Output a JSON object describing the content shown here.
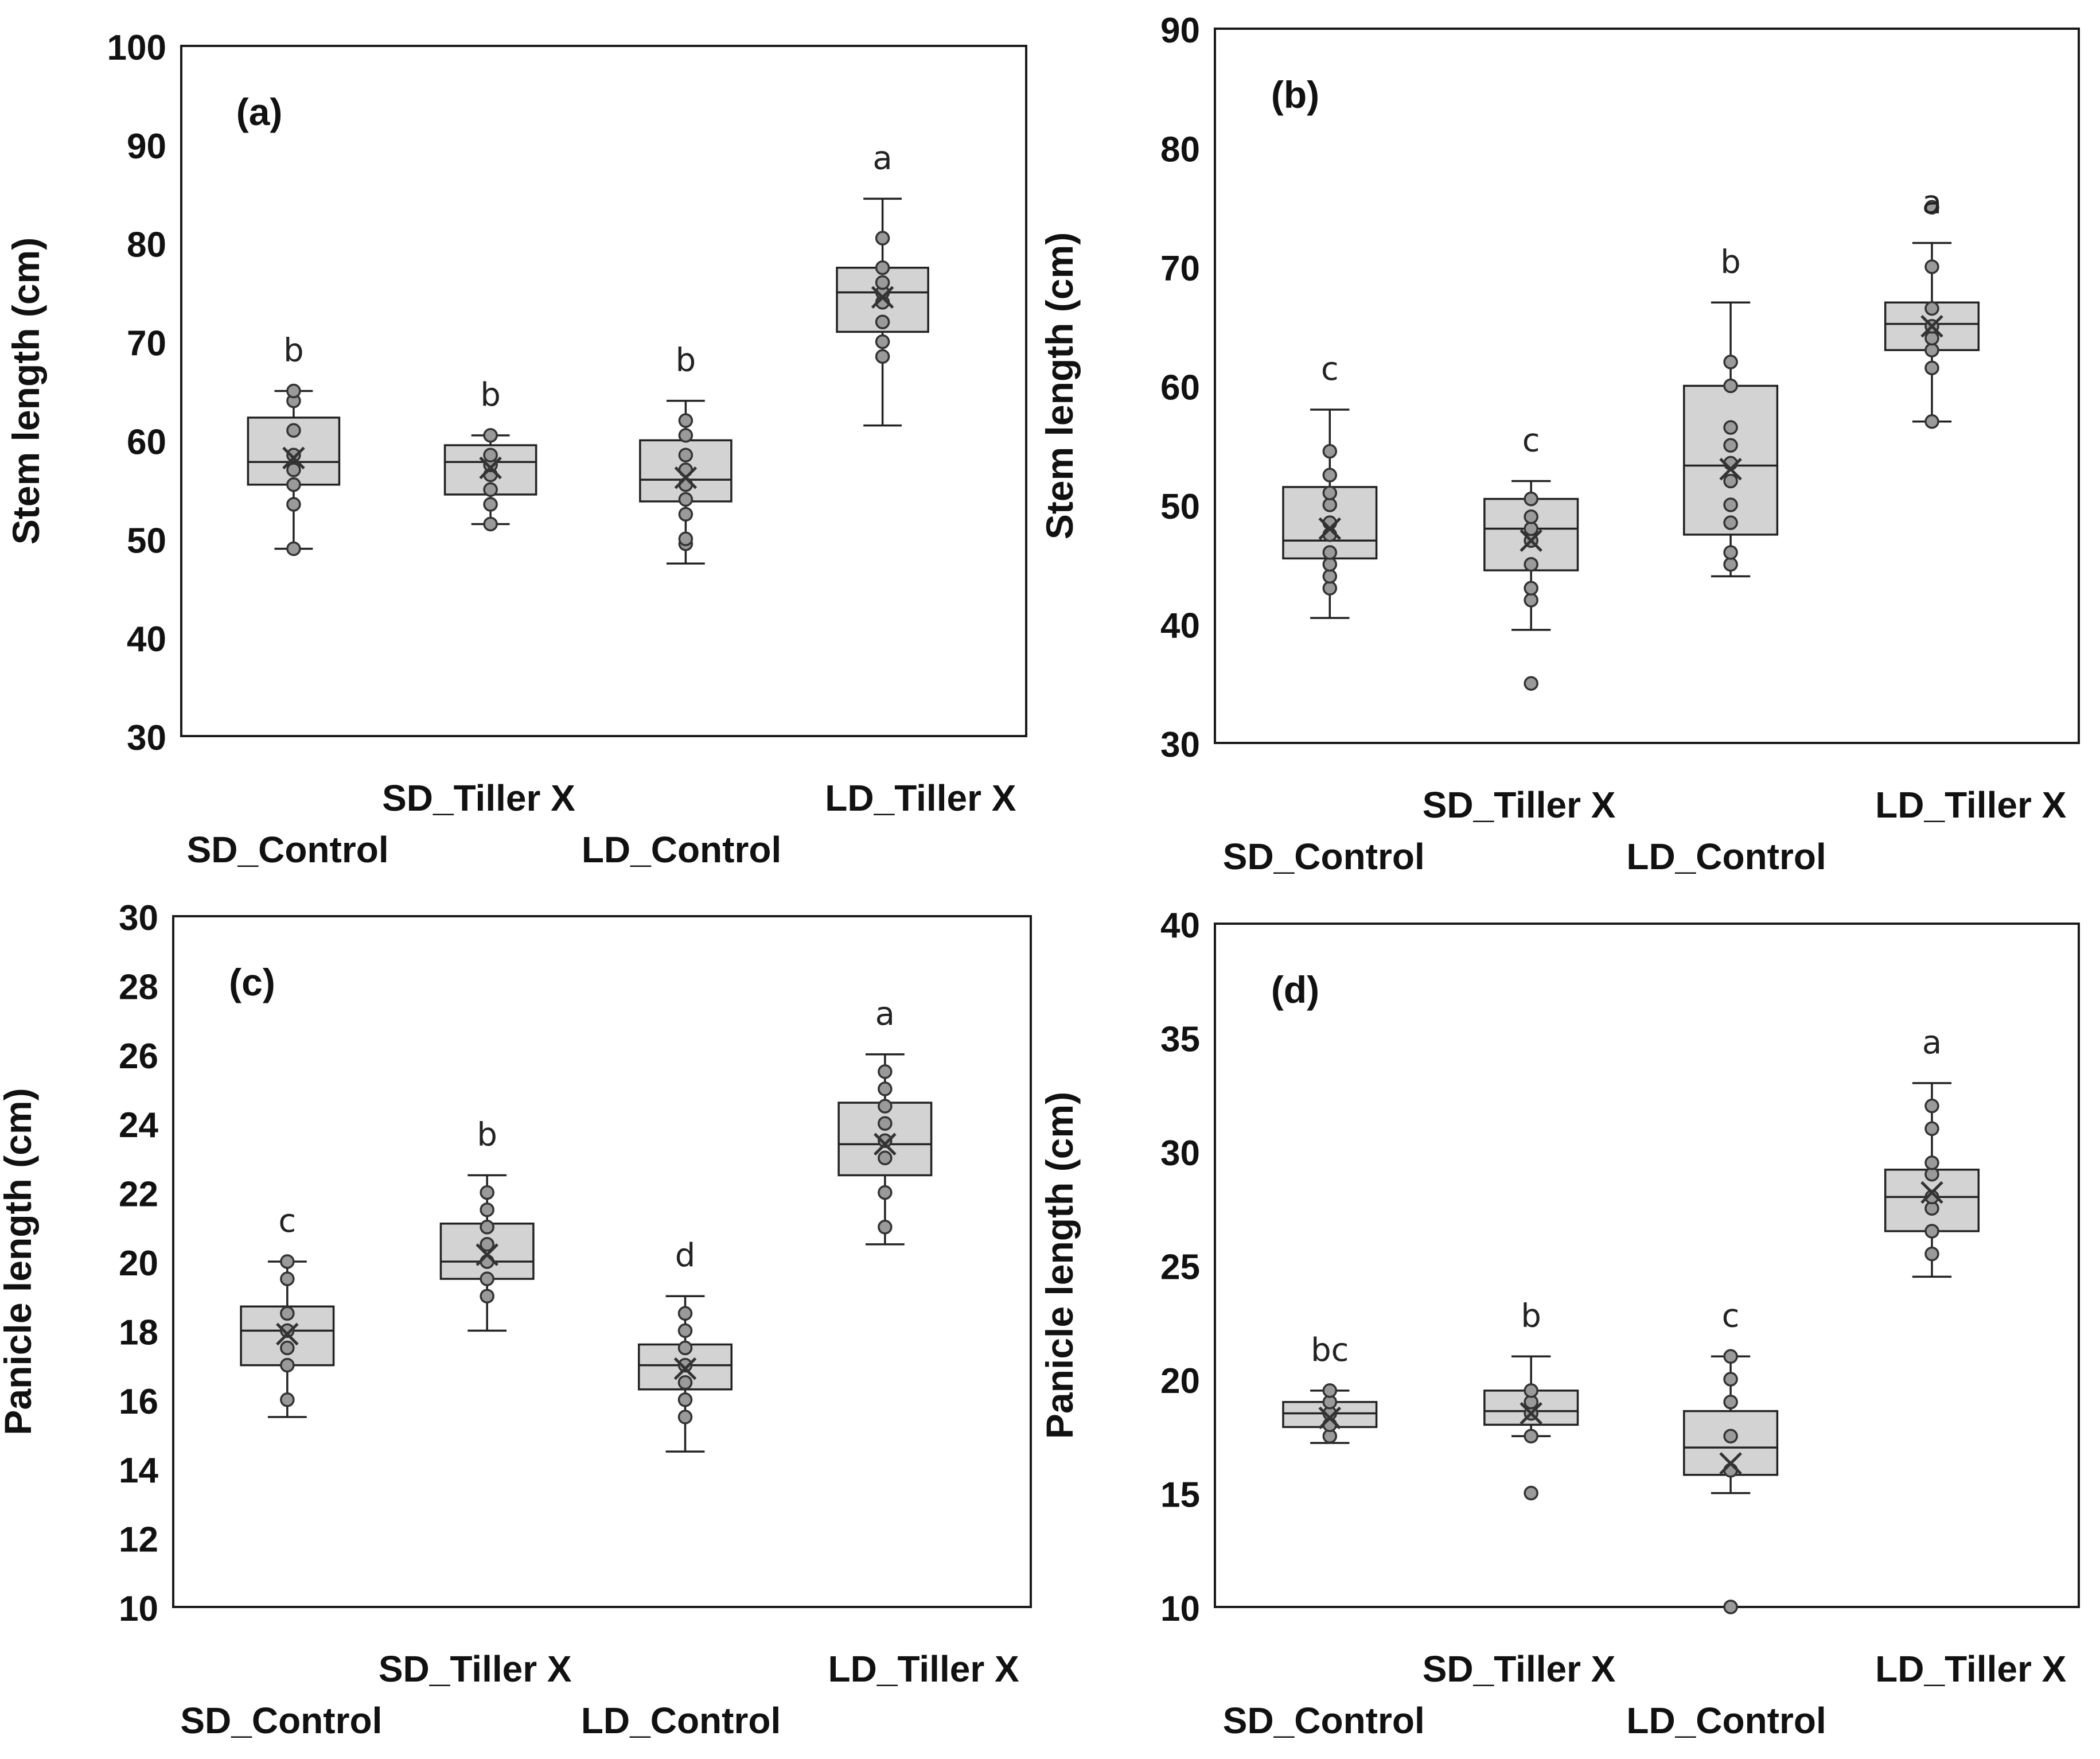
{
  "chart_data": [
    {
      "type": "box",
      "panel_label": "(a)",
      "ylabel": "Stem length (cm)",
      "ylim": [
        30,
        100
      ],
      "yticks": [
        30,
        40,
        50,
        60,
        70,
        80,
        90,
        100
      ],
      "categories": [
        "SD_Control",
        "SD_Tiller X",
        "LD_Control",
        "LD_Tiller X"
      ],
      "boxes": [
        {
          "min": 49,
          "q1": 55.5,
          "median": 57.8,
          "q3": 62.3,
          "max": 65,
          "mean": 58.2,
          "letter": "b",
          "points": [
            49,
            53.5,
            55.5,
            57,
            58.5,
            61,
            64,
            65
          ]
        },
        {
          "min": 51.5,
          "q1": 54.5,
          "median": 57.8,
          "q3": 59.5,
          "max": 60.5,
          "mean": 57.2,
          "letter": "b",
          "points": [
            51.5,
            53.5,
            55,
            56.5,
            57.5,
            58.5,
            60.5
          ]
        },
        {
          "min": 47.5,
          "q1": 53.8,
          "median": 56,
          "q3": 60,
          "max": 64,
          "mean": 56.2,
          "letter": "b",
          "points": [
            49.5,
            50,
            52.5,
            54,
            55.5,
            57,
            58.5,
            60.5,
            62
          ]
        },
        {
          "min": 61.5,
          "q1": 71,
          "median": 75,
          "q3": 77.5,
          "max": 84.5,
          "mean": 74.5,
          "letter": "a",
          "points": [
            68.5,
            70,
            72,
            74,
            75,
            76,
            77.5,
            80.5
          ]
        }
      ]
    },
    {
      "type": "box",
      "panel_label": "(b)",
      "ylabel": "Stem length (cm)",
      "ylim": [
        30,
        90
      ],
      "yticks": [
        30,
        40,
        50,
        60,
        70,
        80,
        90
      ],
      "categories": [
        "SD_Control",
        "SD_Tiller X",
        "LD_Control",
        "LD_Tiller X"
      ],
      "boxes": [
        {
          "min": 40.5,
          "q1": 45.5,
          "median": 47,
          "q3": 51.5,
          "max": 58,
          "mean": 48,
          "letter": "c",
          "points": [
            43,
            44,
            45,
            46,
            47.5,
            48.5,
            50,
            51,
            52.5,
            54.5
          ]
        },
        {
          "min": 39.5,
          "q1": 44.5,
          "median": 48,
          "q3": 50.5,
          "max": 52,
          "mean": 47,
          "letter": "c",
          "points": [
            35,
            42,
            43,
            45,
            47,
            48,
            49,
            50.5
          ]
        },
        {
          "min": 44,
          "q1": 47.5,
          "median": 53.3,
          "q3": 60,
          "max": 67,
          "mean": 53,
          "letter": "b",
          "points": [
            45,
            46,
            48.5,
            50,
            52,
            53.5,
            55,
            56.5,
            60,
            62
          ]
        },
        {
          "min": 57,
          "q1": 63,
          "median": 65.2,
          "q3": 67,
          "max": 72,
          "mean": 65,
          "letter": "a",
          "points": [
            57,
            61.5,
            63,
            64,
            65,
            66.5,
            70,
            75
          ]
        }
      ]
    },
    {
      "type": "box",
      "panel_label": "(c)",
      "ylabel": "Panicle length (cm)",
      "ylim": [
        10,
        30
      ],
      "yticks": [
        10,
        12,
        14,
        16,
        18,
        20,
        22,
        24,
        26,
        28,
        30
      ],
      "categories": [
        "SD_Control",
        "SD_Tiller X",
        "LD_Control",
        "LD_Tiller X"
      ],
      "boxes": [
        {
          "min": 15.5,
          "q1": 17,
          "median": 18,
          "q3": 18.7,
          "max": 20,
          "mean": 17.9,
          "letter": "c",
          "points": [
            16,
            17,
            17.5,
            18,
            18.5,
            19.5,
            20
          ]
        },
        {
          "min": 18,
          "q1": 19.5,
          "median": 20,
          "q3": 21.1,
          "max": 22.5,
          "mean": 20.2,
          "letter": "b",
          "points": [
            19,
            19.5,
            20,
            20.5,
            21,
            21.5,
            22
          ]
        },
        {
          "min": 14.5,
          "q1": 16.3,
          "median": 17,
          "q3": 17.6,
          "max": 19,
          "mean": 16.9,
          "letter": "d",
          "points": [
            15.5,
            16,
            16.5,
            17,
            17.5,
            18,
            18.5
          ]
        },
        {
          "min": 20.5,
          "q1": 22.5,
          "median": 23.4,
          "q3": 24.6,
          "max": 26,
          "mean": 23.4,
          "letter": "a",
          "points": [
            21,
            22,
            23,
            23.5,
            24,
            24.5,
            25,
            25.5
          ]
        }
      ]
    },
    {
      "type": "box",
      "panel_label": "(d)",
      "ylabel": "Panicle length (cm)",
      "ylim": [
        10,
        40
      ],
      "yticks": [
        10,
        15,
        20,
        25,
        30,
        35,
        40
      ],
      "categories": [
        "SD_Control",
        "SD_Tiller X",
        "LD_Control",
        "LD_Tiller X"
      ],
      "boxes": [
        {
          "min": 17.2,
          "q1": 17.9,
          "median": 18.5,
          "q3": 19,
          "max": 19.5,
          "mean": 18.3,
          "letter": "bc",
          "points": [
            17.5,
            18,
            18.5,
            19,
            19.5
          ]
        },
        {
          "min": 17.5,
          "q1": 18,
          "median": 18.6,
          "q3": 19.5,
          "max": 21,
          "mean": 18.5,
          "letter": "b",
          "points": [
            15,
            17.5,
            18.5,
            19,
            19.5
          ]
        },
        {
          "min": 15,
          "q1": 15.8,
          "median": 17,
          "q3": 18.6,
          "max": 21,
          "mean": 16.3,
          "letter": "c",
          "points": [
            10,
            16,
            17.5,
            19,
            20,
            21
          ]
        },
        {
          "min": 24.5,
          "q1": 26.5,
          "median": 28,
          "q3": 29.2,
          "max": 33,
          "mean": 28.2,
          "letter": "a",
          "points": [
            25.5,
            26.5,
            27.5,
            28,
            29,
            29.5,
            31,
            32
          ]
        }
      ]
    }
  ]
}
